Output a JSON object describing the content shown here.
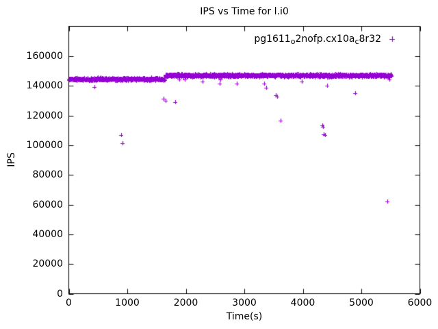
{
  "title": "IPS vs Time for l.i0",
  "legend": {
    "parts": [
      {
        "text": "pg1611",
        "sub": false
      },
      {
        "text": "o",
        "sub": true
      },
      {
        "text": "2nofp.cx10a",
        "sub": false
      },
      {
        "text": "c",
        "sub": true
      },
      {
        "text": "8r32",
        "sub": false
      }
    ],
    "plain": "pg1611_o2nofp.cx10a_c8r32"
  },
  "chart_data": {
    "type": "scatter",
    "title": "IPS vs Time for l.i0",
    "xlabel": "Time(s)",
    "ylabel": "IPS",
    "xlim": [
      0,
      6000
    ],
    "ylim": [
      0,
      180000
    ],
    "xticks": [
      0,
      1000,
      2000,
      3000,
      4000,
      5000,
      6000
    ],
    "yticks": [
      0,
      20000,
      40000,
      60000,
      80000,
      100000,
      120000,
      140000,
      160000
    ],
    "grid": false,
    "legend_position": "top-right-inside",
    "seed": 1234,
    "series": [
      {
        "name": "pg1611_o2nofp.cx10a_c8r32",
        "color": "#9400d3",
        "marker": "plus",
        "band_segments": [
          {
            "x_start": 5,
            "x_end": 1650,
            "mean": 144300,
            "jitter": 1500,
            "spacing": 3
          },
          {
            "x_start": 1650,
            "x_end": 5520,
            "mean": 146800,
            "jitter": 1600,
            "spacing": 3
          }
        ],
        "outliers": [
          [
            900,
            107000
          ],
          [
            915,
            101500
          ],
          [
            1620,
            131500
          ],
          [
            1655,
            130000
          ],
          [
            1820,
            129000
          ],
          [
            2580,
            141500
          ],
          [
            2870,
            141500
          ],
          [
            3340,
            141500
          ],
          [
            3370,
            138500
          ],
          [
            3540,
            133500
          ],
          [
            3560,
            132500
          ],
          [
            3620,
            116500
          ],
          [
            4330,
            113500
          ],
          [
            4345,
            112500
          ],
          [
            4360,
            107500
          ],
          [
            4375,
            107000
          ],
          [
            4420,
            140000
          ],
          [
            4890,
            135000
          ],
          [
            5450,
            62000
          ]
        ]
      }
    ]
  }
}
